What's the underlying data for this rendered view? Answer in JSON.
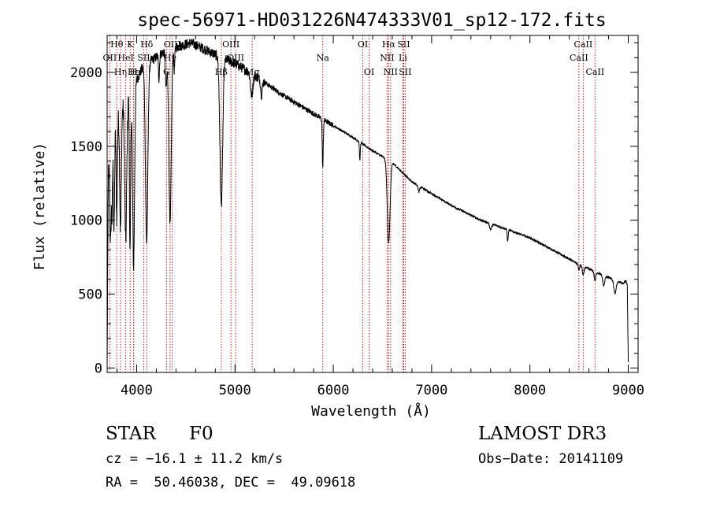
{
  "chart_data": {
    "type": "line",
    "title": "spec-56971-HD031226N474333V01_sp12-172.fits",
    "xlabel": "Wavelength (Å)",
    "ylabel": "Flux (relative)",
    "xlim": [
      3700,
      9100
    ],
    "ylim": [
      -30,
      2250
    ],
    "xticks": [
      4000,
      5000,
      6000,
      7000,
      8000,
      9000
    ],
    "yticks": [
      0,
      500,
      1000,
      1500,
      2000
    ],
    "line_color": "#000000",
    "marker_color": "#b22222",
    "continuum": [
      [
        3700,
        0
      ],
      [
        3712,
        1300
      ],
      [
        3760,
        1600
      ],
      [
        3820,
        1720
      ],
      [
        3900,
        1820
      ],
      [
        3970,
        1900
      ],
      [
        4050,
        2020
      ],
      [
        4150,
        2080
      ],
      [
        4300,
        2150
      ],
      [
        4450,
        2180
      ],
      [
        4550,
        2200
      ],
      [
        4650,
        2170
      ],
      [
        4800,
        2120
      ],
      [
        5000,
        2060
      ],
      [
        5200,
        1980
      ],
      [
        5500,
        1840
      ],
      [
        5800,
        1720
      ],
      [
        6000,
        1640
      ],
      [
        6200,
        1560
      ],
      [
        6400,
        1470
      ],
      [
        6600,
        1390
      ],
      [
        6800,
        1260
      ],
      [
        7000,
        1180
      ],
      [
        7200,
        1100
      ],
      [
        7500,
        1000
      ],
      [
        7800,
        930
      ],
      [
        8000,
        880
      ],
      [
        8200,
        810
      ],
      [
        8500,
        700
      ],
      [
        8700,
        640
      ],
      [
        8950,
        570
      ],
      [
        8975,
        590
      ],
      [
        8990,
        560
      ],
      [
        8995,
        300
      ],
      [
        9000,
        40
      ]
    ],
    "absorption_features": [
      {
        "x": 3735,
        "depth": 600,
        "width": 6
      },
      {
        "x": 3750,
        "depth": 500,
        "width": 5
      },
      {
        "x": 3770,
        "depth": 700,
        "width": 6
      },
      {
        "x": 3798,
        "depth": 650,
        "width": 6
      },
      {
        "x": 3836,
        "depth": 800,
        "width": 8
      },
      {
        "x": 3889,
        "depth": 950,
        "width": 10
      },
      {
        "x": 3933,
        "depth": 1100,
        "width": 6
      },
      {
        "x": 3969,
        "depth": 1200,
        "width": 10
      },
      {
        "x": 4102,
        "depth": 1200,
        "width": 12
      },
      {
        "x": 4227,
        "depth": 160,
        "width": 5
      },
      {
        "x": 4300,
        "depth": 250,
        "width": 8
      },
      {
        "x": 4340,
        "depth": 1200,
        "width": 12
      },
      {
        "x": 4383,
        "depth": 150,
        "width": 5
      },
      {
        "x": 4861,
        "depth": 1000,
        "width": 14
      },
      {
        "x": 5170,
        "depth": 150,
        "width": 12
      },
      {
        "x": 5270,
        "depth": 100,
        "width": 8
      },
      {
        "x": 5893,
        "depth": 330,
        "width": 5
      },
      {
        "x": 6270,
        "depth": 130,
        "width": 4
      },
      {
        "x": 6563,
        "depth": 560,
        "width": 14
      },
      {
        "x": 6870,
        "depth": 40,
        "width": 8
      },
      {
        "x": 7600,
        "depth": 40,
        "width": 10
      },
      {
        "x": 7774,
        "depth": 80,
        "width": 5
      },
      {
        "x": 8498,
        "depth": 40,
        "width": 6
      },
      {
        "x": 8542,
        "depth": 60,
        "width": 8
      },
      {
        "x": 8662,
        "depth": 60,
        "width": 8
      },
      {
        "x": 8750,
        "depth": 70,
        "width": 10
      },
      {
        "x": 8865,
        "depth": 90,
        "width": 12
      }
    ],
    "line_markers": [
      {
        "label": "Hθ",
        "x": 3798,
        "row": 0
      },
      {
        "label": "OII",
        "x": 3727,
        "row": 1
      },
      {
        "label": "Hη",
        "x": 3836,
        "row": 2
      },
      {
        "label": "K",
        "x": 3934,
        "row": 0
      },
      {
        "label": "HeI",
        "x": 3889,
        "row": 1
      },
      {
        "label": "Hε",
        "x": 3970,
        "row": 2
      },
      {
        "label": "H",
        "x": 3969,
        "row": 2
      },
      {
        "label": "Hδ",
        "x": 4102,
        "row": 0
      },
      {
        "label": "SII",
        "x": 4072,
        "row": 1
      },
      {
        "label": "OIII",
        "x": 4363,
        "row": 0
      },
      {
        "label": "G",
        "x": 4304,
        "row": 2
      },
      {
        "label": "Hγ",
        "x": 4340,
        "row": 1
      },
      {
        "label": "OIII",
        "x": 4959,
        "row": 0
      },
      {
        "label": "OIII",
        "x": 5007,
        "row": 1
      },
      {
        "label": "Hβ",
        "x": 4861,
        "row": 2
      },
      {
        "label": "Mg",
        "x": 5175,
        "row": 2
      },
      {
        "label": "Na",
        "x": 5893,
        "row": 1
      },
      {
        "label": "OI",
        "x": 6300,
        "row": 0
      },
      {
        "label": "OI",
        "x": 6364,
        "row": 2
      },
      {
        "label": "Hα",
        "x": 6563,
        "row": 0
      },
      {
        "label": "SII",
        "x": 6716,
        "row": 0
      },
      {
        "label": "NII",
        "x": 6548,
        "row": 1
      },
      {
        "label": "Li",
        "x": 6708,
        "row": 1
      },
      {
        "label": "NII",
        "x": 6583,
        "row": 2
      },
      {
        "label": "SII",
        "x": 6731,
        "row": 2
      },
      {
        "label": "CaII",
        "x": 8542,
        "row": 0
      },
      {
        "label": "CaII",
        "x": 8498,
        "row": 1
      },
      {
        "label": "CaII",
        "x": 8662,
        "row": 2
      }
    ]
  },
  "info": {
    "object_class": "STAR",
    "subclass": "F0",
    "survey": "LAMOST DR3",
    "cz": "cz = −16.1 ± 11.2 km/s",
    "obs_date": "Obs−Date: 20141109",
    "coords": "RA =  50.46038, DEC =  49.09618"
  }
}
